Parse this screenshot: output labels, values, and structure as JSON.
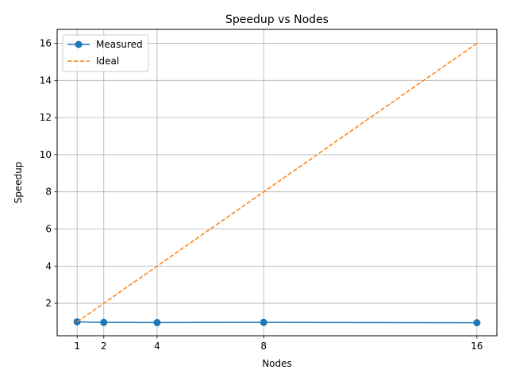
{
  "chart_data": {
    "type": "line",
    "title": "Speedup vs Nodes",
    "xlabel": "Nodes",
    "ylabel": "Speedup",
    "x": [
      1,
      2,
      4,
      8,
      16
    ],
    "xticks": [
      1,
      2,
      4,
      8,
      16
    ],
    "yticks": [
      2,
      4,
      6,
      8,
      10,
      12,
      14,
      16
    ],
    "xlim": [
      0.25,
      16.75
    ],
    "ylim": [
      0.25,
      16.75
    ],
    "grid": true,
    "legend_position": "top-left",
    "series": [
      {
        "name": "Measured",
        "values": [
          1.0,
          0.97,
          0.96,
          0.97,
          0.95
        ],
        "color": "#1f77b4",
        "style": "solid",
        "marker": "circle"
      },
      {
        "name": "Ideal",
        "values": [
          1,
          2,
          4,
          8,
          16
        ],
        "color": "#ff7f0e",
        "style": "dashed",
        "marker": "none"
      }
    ]
  }
}
